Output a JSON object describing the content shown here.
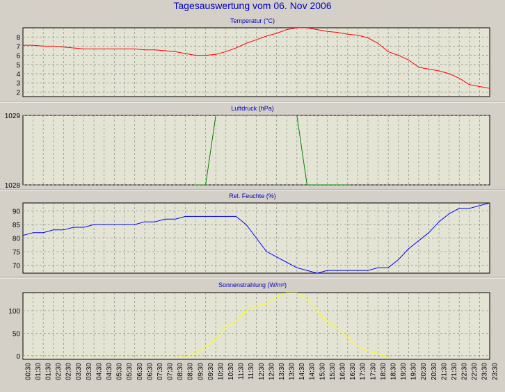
{
  "colors": {
    "background": "#d4d0c8",
    "plot_background": "#e4e4d4",
    "grid": "#888888",
    "title": "#0000c0"
  },
  "chart_data": [
    {
      "type": "line",
      "title": "Temperatur (°C)",
      "super_title": "Tagesauswertung vom 06. Nov 2006",
      "color": "#ff0000",
      "ylim": [
        1.5,
        9
      ],
      "yticks": [
        2,
        3,
        4,
        5,
        6,
        7,
        8
      ],
      "x": [
        "00:00",
        "00:30",
        "01:00",
        "01:30",
        "02:00",
        "02:30",
        "03:00",
        "03:30",
        "04:00",
        "04:30",
        "05:00",
        "05:30",
        "06:00",
        "06:30",
        "07:00",
        "07:30",
        "08:00",
        "08:30",
        "09:00",
        "09:30",
        "10:00",
        "10:30",
        "11:00",
        "11:30",
        "12:00",
        "12:30",
        "13:00",
        "13:30",
        "14:00",
        "14:30",
        "15:00",
        "15:30",
        "16:00",
        "16:30",
        "17:00",
        "17:30",
        "18:00",
        "18:30",
        "19:00",
        "19:30",
        "20:00",
        "20:30",
        "21:00",
        "21:30",
        "22:00",
        "22:30",
        "23:00",
        "23:30"
      ],
      "values": [
        7.1,
        7.1,
        7.0,
        7.0,
        6.9,
        6.8,
        6.7,
        6.7,
        6.7,
        6.7,
        6.7,
        6.7,
        6.6,
        6.6,
        6.5,
        6.4,
        6.2,
        6.0,
        6.0,
        6.1,
        6.4,
        6.8,
        7.3,
        7.7,
        8.1,
        8.4,
        8.8,
        9.0,
        9.0,
        8.8,
        8.6,
        8.5,
        8.3,
        8.2,
        7.9,
        7.3,
        6.4,
        6.0,
        5.5,
        4.7,
        4.5,
        4.3,
        4.0,
        3.5,
        2.8,
        2.6,
        2.4,
        1.5
      ]
    },
    {
      "type": "line",
      "title": "Luftdruck (hPa)",
      "color": "#008000",
      "ylim": [
        1028,
        1029
      ],
      "yticks": [
        1028,
        1029
      ],
      "x": [
        "08:30",
        "09:00",
        "09:30",
        "10:00",
        "10:30",
        "11:00",
        "11:30",
        "12:00",
        "12:30",
        "13:00",
        "13:30",
        "14:00",
        "14:30",
        "15:00",
        "15:30",
        "16:00"
      ],
      "values": [
        1028,
        1028,
        1029,
        1029,
        1029,
        1029,
        1029,
        1029,
        1029,
        1029,
        1029,
        1028,
        1028,
        1028,
        1028,
        1028
      ]
    },
    {
      "type": "line",
      "title": "Rel. Feuchte (%)",
      "color": "#0000ff",
      "ylim": [
        67,
        93
      ],
      "yticks": [
        70,
        75,
        80,
        85,
        90
      ],
      "x": [
        "00:00",
        "00:30",
        "01:00",
        "01:30",
        "02:00",
        "02:30",
        "03:00",
        "03:30",
        "04:00",
        "04:30",
        "05:00",
        "05:30",
        "06:00",
        "06:30",
        "07:00",
        "07:30",
        "08:00",
        "08:30",
        "09:00",
        "09:30",
        "10:00",
        "10:30",
        "11:00",
        "11:30",
        "12:00",
        "12:30",
        "13:00",
        "13:30",
        "14:00",
        "14:30",
        "15:00",
        "15:30",
        "16:00",
        "16:30",
        "17:00",
        "17:30",
        "18:00",
        "18:30",
        "19:00",
        "19:30",
        "20:00",
        "20:30",
        "21:00",
        "21:30",
        "22:00",
        "22:30",
        "23:00",
        "23:30"
      ],
      "values": [
        81,
        82,
        82,
        83,
        83,
        84,
        84,
        85,
        85,
        85,
        85,
        85,
        86,
        86,
        87,
        87,
        88,
        88,
        88,
        88,
        88,
        88,
        85,
        80,
        75,
        73,
        71,
        69,
        68,
        67,
        68,
        68,
        68,
        68,
        68,
        69,
        69,
        72,
        76,
        79,
        82,
        86,
        89,
        91,
        91,
        92,
        93,
        null
      ]
    },
    {
      "type": "line",
      "title": "Sonnenstrahlung (W/m²)",
      "color": "#ffff00",
      "ylim": [
        -8,
        140
      ],
      "yticks": [
        0,
        50,
        100
      ],
      "x": [
        "00:00",
        "00:30",
        "01:00",
        "01:30",
        "02:00",
        "02:30",
        "03:00",
        "03:30",
        "04:00",
        "04:30",
        "05:00",
        "05:30",
        "06:00",
        "06:30",
        "07:00",
        "07:30",
        "08:00",
        "08:30",
        "09:00",
        "09:30",
        "10:00",
        "10:30",
        "11:00",
        "11:30",
        "12:00",
        "12:30",
        "13:00",
        "13:30",
        "14:00",
        "14:30",
        "15:00",
        "15:30",
        "16:00",
        "16:30",
        "17:00",
        "17:30",
        "18:00"
      ],
      "values": [
        -4,
        -4,
        -4,
        -4,
        -4,
        -4,
        -4,
        -4,
        -4,
        -4,
        -4,
        -4,
        -4,
        -4,
        -4,
        -4,
        -3,
        5,
        20,
        35,
        65,
        75,
        100,
        110,
        115,
        130,
        140,
        140,
        125,
        100,
        75,
        60,
        40,
        20,
        10,
        5,
        -4
      ]
    }
  ],
  "x_axis": {
    "tick_labels": [
      "00:30",
      "01:30",
      "01:30",
      "02:30",
      "02:30",
      "03:30",
      "03:30",
      "04:30",
      "04:30",
      "05:30",
      "05:30",
      "06:30",
      "06:30",
      "07:30",
      "07:30",
      "08:30",
      "08:30",
      "09:30",
      "09:30",
      "10:30",
      "10:30",
      "11:30",
      "11:30",
      "12:30",
      "12:30",
      "13:30",
      "13:30",
      "14:30",
      "14:30",
      "15:30",
      "15:30",
      "16:30",
      "16:30",
      "17:30",
      "17:30",
      "18:30",
      "18:30",
      "19:30",
      "19:30",
      "20:30",
      "20:30",
      "21:30",
      "21:30",
      "22:30",
      "22:30",
      "23:30",
      "23:30"
    ]
  }
}
